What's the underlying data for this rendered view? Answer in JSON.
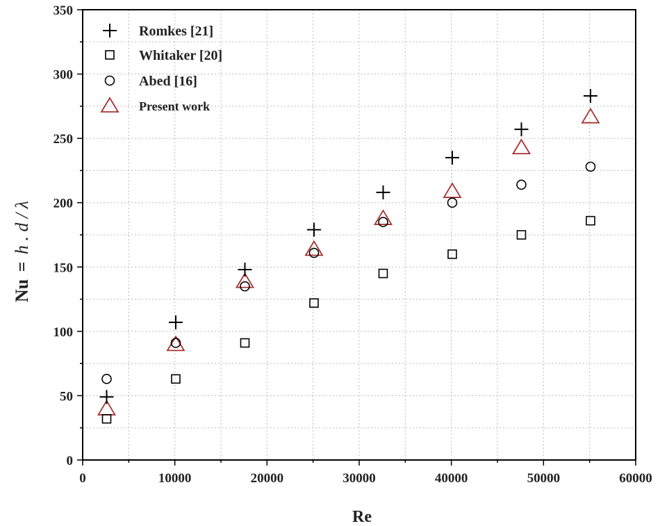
{
  "chart_data": {
    "type": "scatter",
    "xlabel": "Re",
    "ylabel": "Nu = h . d / λ",
    "ylabel_parts": {
      "nu": "Nu",
      "eq": "=",
      "rest": "h . d / λ"
    },
    "xlim": [
      0,
      60000
    ],
    "ylim": [
      0,
      350
    ],
    "xticks": [
      0,
      10000,
      20000,
      30000,
      40000,
      50000,
      60000
    ],
    "yticks": [
      0,
      50,
      100,
      150,
      200,
      250,
      300,
      350
    ],
    "grid": true,
    "legend_position": "top-left",
    "series": [
      {
        "name": "Romkes [21]",
        "marker": "plus",
        "color": "#000000",
        "points": [
          {
            "x": 2600,
            "y": 49
          },
          {
            "x": 10100,
            "y": 107
          },
          {
            "x": 17600,
            "y": 148
          },
          {
            "x": 25100,
            "y": 179
          },
          {
            "x": 32600,
            "y": 208
          },
          {
            "x": 40100,
            "y": 235
          },
          {
            "x": 47600,
            "y": 257
          },
          {
            "x": 55100,
            "y": 283
          }
        ]
      },
      {
        "name": "Whitaker [20]",
        "marker": "square",
        "color": "#000000",
        "points": [
          {
            "x": 2600,
            "y": 32
          },
          {
            "x": 10100,
            "y": 63
          },
          {
            "x": 17600,
            "y": 91
          },
          {
            "x": 25100,
            "y": 122
          },
          {
            "x": 32600,
            "y": 145
          },
          {
            "x": 40100,
            "y": 160
          },
          {
            "x": 47600,
            "y": 175
          },
          {
            "x": 55100,
            "y": 186
          }
        ]
      },
      {
        "name": "Abed [16]",
        "marker": "circle",
        "color": "#000000",
        "points": [
          {
            "x": 2600,
            "y": 63
          },
          {
            "x": 10100,
            "y": 91
          },
          {
            "x": 17600,
            "y": 135
          },
          {
            "x": 25100,
            "y": 161
          },
          {
            "x": 32600,
            "y": 185
          },
          {
            "x": 40100,
            "y": 200
          },
          {
            "x": 47600,
            "y": 214
          },
          {
            "x": 55100,
            "y": 228
          }
        ]
      },
      {
        "name": "Present work",
        "marker": "triangle",
        "color": "#a83232",
        "points": [
          {
            "x": 2600,
            "y": 40
          },
          {
            "x": 10100,
            "y": 90
          },
          {
            "x": 17600,
            "y": 139
          },
          {
            "x": 25100,
            "y": 164
          },
          {
            "x": 32600,
            "y": 188
          },
          {
            "x": 40100,
            "y": 209
          },
          {
            "x": 47600,
            "y": 243
          },
          {
            "x": 55100,
            "y": 267
          }
        ]
      }
    ]
  }
}
